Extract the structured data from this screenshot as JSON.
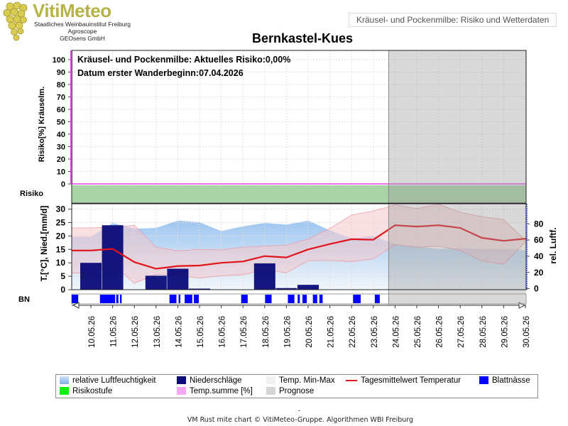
{
  "header": {
    "brand": "VitiMeteo",
    "org_lines": [
      "Staatliches Weinbauinstitut Freiburg",
      "Agroscope",
      "GEOsens GmbH"
    ],
    "subtitle": "Kräusel- und Pockenmilbe: Risiko und Wetterdaten",
    "title": "Bernkastel-Kues"
  },
  "colors": {
    "humidity": "#a9cbef",
    "precip": "#0a0a78",
    "temp_band": "#f4c8cc",
    "temp_line": "#e0141a",
    "risk_green": "#a8d4a8",
    "leaf_wet": "#0000ff",
    "prognose": "#d4d4d4",
    "tempsum": "#dd44dd"
  },
  "chart_data": {
    "type": "line",
    "x": [
      "10.05.26",
      "11.05.26",
      "12.05.26",
      "13.05.26",
      "14.05.26",
      "15.05.26",
      "16.05.26",
      "17.05.26",
      "18.05.26",
      "19.05.26",
      "20.05.26",
      "21.05.26",
      "22.05.26",
      "23.05.26",
      "24.05.26",
      "25.05.26",
      "26.05.26",
      "27.05.26",
      "28.05.26",
      "29.05.26",
      "30.05.26"
    ],
    "prognose_from": "24.05.26",
    "risk_panel": {
      "ylabel": "Risiko[%] Kräuselm.",
      "yticks": [
        0,
        10,
        20,
        30,
        40,
        50,
        60,
        70,
        80,
        90,
        100
      ],
      "ylim": [
        0,
        100
      ],
      "annotation_risk": "Kräusel- und Pockenmilbe: Aktuelles Risiko:0,00%",
      "annotation_date": "Datum erster Wanderbeginn:07.04.2026",
      "risk_values": [
        0,
        0,
        0,
        0,
        0,
        0,
        0,
        0,
        0,
        0,
        0,
        0,
        0,
        0,
        0,
        0,
        0,
        0,
        0,
        0,
        0
      ]
    },
    "risk_band_label": "Risiko",
    "weather_panel": {
      "ylabel_left": "T.[°C], Nied.[mm/d]",
      "ylabel_right": "rel. Luftf.",
      "yticks_left": [
        0,
        5,
        10,
        15,
        20,
        25,
        30
      ],
      "ylim_left": [
        0,
        32
      ],
      "yticks_right": [
        0,
        20,
        40,
        60,
        80
      ],
      "ylim_right": [
        -10,
        96
      ],
      "humidity": [
        64,
        81,
        74,
        75,
        84,
        82,
        71,
        77,
        81,
        79,
        84,
        72,
        62,
        65,
        55,
        52,
        49,
        50,
        49,
        49,
        47
      ],
      "precip": [
        10,
        24,
        0,
        5.2,
        7.8,
        0.4,
        0,
        0,
        9.8,
        0.6,
        1.8,
        0,
        0,
        0,
        0,
        0,
        0,
        0,
        0,
        0,
        0
      ],
      "temp_max": [
        23,
        23.3,
        24,
        15.8,
        14.4,
        15,
        14.8,
        15.8,
        16.2,
        16.6,
        18.8,
        22.8,
        27.8,
        29.3,
        31.6,
        30.2,
        31.8,
        28.8,
        27.2,
        26.1,
        18.3
      ],
      "temp_min": [
        6.2,
        9.6,
        2.4,
        5.7,
        5.3,
        4.3,
        5.2,
        5.6,
        7.4,
        6.3,
        10.8,
        10.9,
        10.5,
        11.5,
        16.8,
        15.8,
        16.2,
        14.6,
        10.7,
        9.5,
        17.8
      ],
      "temp_mean": [
        14.6,
        15.2,
        10.3,
        7.8,
        8.8,
        9.0,
        10.0,
        10.5,
        12.5,
        12.0,
        15.0,
        17.0,
        18.8,
        18.6,
        24.0,
        23.5,
        24.0,
        23.0,
        19.3,
        18.2,
        19.0
      ]
    },
    "leaf_wetness": {
      "label": "BN",
      "intervals": [
        [
          0.0,
          0.3
        ],
        [
          1.3,
          2.0
        ],
        [
          2.05,
          2.15
        ],
        [
          2.22,
          2.3
        ],
        [
          4.5,
          4.82
        ],
        [
          4.92,
          5.0
        ],
        [
          5.2,
          5.55
        ],
        [
          5.62,
          5.85
        ],
        [
          7.8,
          8.1
        ],
        [
          8.9,
          9.2
        ],
        [
          9.95,
          10.25
        ],
        [
          10.4,
          10.5
        ],
        [
          10.62,
          10.82
        ],
        [
          11.1,
          11.3
        ],
        [
          11.4,
          11.55
        ],
        [
          12.95,
          13.3
        ],
        [
          13.95,
          14.18
        ]
      ]
    },
    "legend": [
      {
        "label": "relative Luftfeuchtigkeit",
        "color": "#a9cbef"
      },
      {
        "label": "Niederschläge",
        "color": "#0a0a78"
      },
      {
        "label": "Temp. Min-Max",
        "color": "#f0f0f0"
      },
      {
        "label": "Tagesmittelwert Temperatur",
        "color": "#e0141a"
      },
      {
        "label": "Blattnässe",
        "color": "#0000ff"
      },
      {
        "label": "Risikostufe",
        "color": "#11ee11"
      },
      {
        "label": "Temp.summe [%]",
        "color": "#f4a8f4"
      },
      {
        "label": "Prognose",
        "color": "#d4d4d4"
      }
    ]
  },
  "footer": {
    "dash": "-",
    "credit": "VM Rust mite chart © VitiMeteo-Gruppe. Algorithmen WBI Freiburg"
  }
}
